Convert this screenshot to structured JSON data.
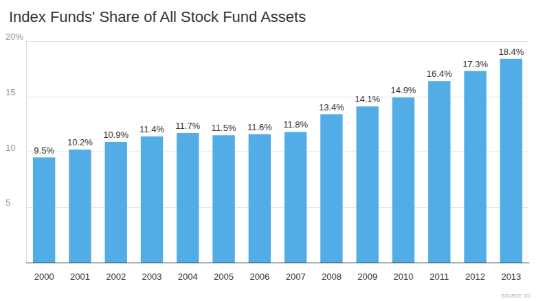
{
  "chart_data": {
    "type": "bar",
    "title": "Index Funds' Share of All Stock Fund Assets",
    "source": "SOURCE: ICI",
    "categories": [
      "2000",
      "2001",
      "2002",
      "2003",
      "2004",
      "2005",
      "2006",
      "2007",
      "2008",
      "2009",
      "2010",
      "2011",
      "2012",
      "2013"
    ],
    "values": [
      9.5,
      10.2,
      10.9,
      11.4,
      11.7,
      11.5,
      11.6,
      11.8,
      13.4,
      14.1,
      14.9,
      16.4,
      17.3,
      18.4
    ],
    "value_labels": [
      "9.5%",
      "10.2%",
      "10.9%",
      "11.4%",
      "11.7%",
      "11.5%",
      "11.6%",
      "11.8%",
      "13.4%",
      "14.1%",
      "14.9%",
      "16.4%",
      "17.3%",
      "18.4%"
    ],
    "color": "#52ade6",
    "ylim": [
      0,
      20
    ],
    "yticks": [
      5,
      10,
      15,
      {
        "value": 20,
        "label": "20%"
      }
    ],
    "grid": true,
    "data_labels": true
  }
}
